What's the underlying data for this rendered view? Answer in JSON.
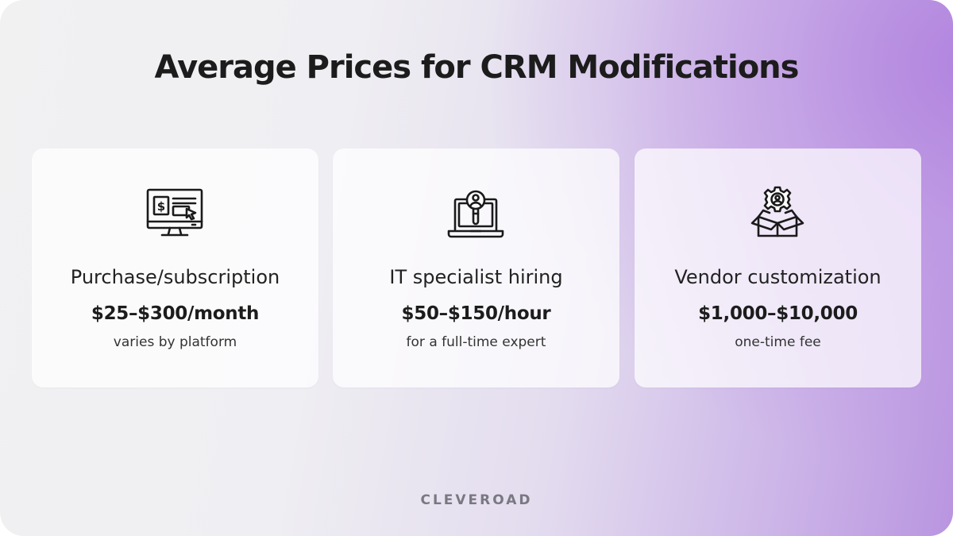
{
  "title": "Average Prices for CRM Modifications",
  "cards": [
    {
      "icon": "monitor-payment-icon",
      "title": "Purchase/subscription",
      "price": "$25–$300/month",
      "note": "varies by platform"
    },
    {
      "icon": "laptop-specialist-search-icon",
      "title": "IT specialist hiring",
      "price": "$50–$150/hour",
      "note": "for a full-time expert"
    },
    {
      "icon": "box-gear-user-icon",
      "title": "Vendor customization",
      "price": "$1,000–$10,000",
      "note": "one-time fee"
    }
  ],
  "brand": "CLEVEROAD",
  "colors": {
    "text": "#1c1c1c",
    "accent_purple": "#b995e0",
    "brand_gray": "#7a7880"
  }
}
